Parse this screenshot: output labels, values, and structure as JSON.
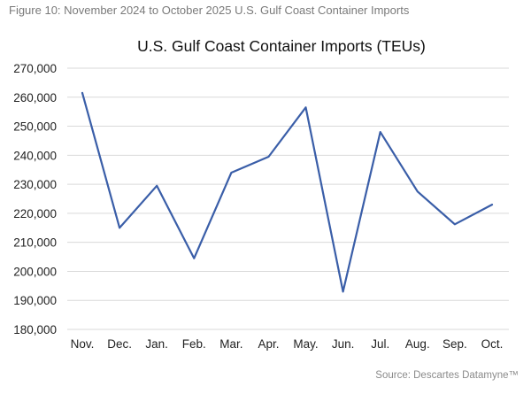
{
  "caption": "Figure 10: November 2024 to October 2025 U.S. Gulf Coast Container Imports",
  "source": "Source: Descartes Datamyne™",
  "chart_data": {
    "type": "line",
    "title": "U.S. Gulf Coast Container Imports (TEUs)",
    "xlabel": "",
    "ylabel": "",
    "categories": [
      "Nov.",
      "Dec.",
      "Jan.",
      "Feb.",
      "Mar.",
      "Apr.",
      "May.",
      "Jun.",
      "Jul.",
      "Aug.",
      "Sep.",
      "Oct."
    ],
    "series": [
      {
        "values": [
          261500,
          215000,
          229500,
          204500,
          234000,
          239500,
          256500,
          193000,
          248000,
          227500,
          216200,
          223000
        ],
        "color": "#3a5ea8"
      }
    ],
    "ylim": [
      180000,
      270000
    ],
    "yticks": [
      "180,000",
      "190,000",
      "200,000",
      "210,000",
      "220,000",
      "230,000",
      "240,000",
      "250,000",
      "260,000",
      "270,000"
    ],
    "ytick_values": [
      180000,
      190000,
      200000,
      210000,
      220000,
      230000,
      240000,
      250000,
      260000,
      270000
    ],
    "grid": true,
    "legend": "none"
  }
}
